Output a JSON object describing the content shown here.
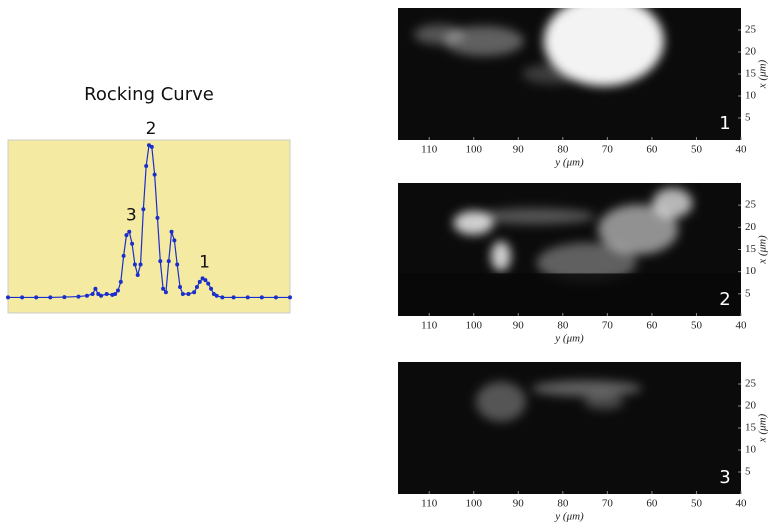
{
  "chart_data": [
    {
      "type": "line",
      "title": "Rocking Curve",
      "xlim": [
        0,
        100
      ],
      "ylim": [
        0,
        100
      ],
      "color": "#1a2ecc",
      "background": "#f5eaa2",
      "x": [
        0,
        5,
        10,
        15,
        20,
        25,
        28,
        30,
        31,
        32,
        33,
        35,
        37,
        38,
        39,
        40,
        41,
        42,
        43,
        44,
        45,
        46,
        47,
        48,
        49,
        50,
        51,
        52,
        53,
        54,
        55,
        56,
        57,
        58,
        59,
        60,
        61,
        62,
        64,
        66,
        67,
        68,
        69,
        70,
        71,
        72,
        73,
        74,
        76,
        80,
        85,
        90,
        95,
        100
      ],
      "values": [
        9,
        9,
        9,
        9,
        9.2,
        9.5,
        10,
        11,
        14,
        11,
        10,
        11,
        10.5,
        11,
        13,
        18,
        33,
        45,
        47,
        40,
        28,
        22,
        28,
        60,
        85,
        97,
        96,
        80,
        55,
        30,
        14,
        12,
        30,
        47,
        42,
        28,
        15,
        11,
        11,
        12,
        15,
        18,
        20,
        19,
        17,
        14,
        11,
        10,
        9,
        9,
        9,
        9,
        9,
        9
      ],
      "annotations": [
        {
          "text": "2",
          "x": 50,
          "y": 97
        },
        {
          "text": "3",
          "x": 43,
          "y": 47
        },
        {
          "text": "1",
          "x": 69,
          "y": 20
        }
      ]
    },
    {
      "type": "image",
      "panel": "1",
      "xlim": [
        117,
        40
      ],
      "xticks": [
        110,
        100,
        90,
        80,
        70,
        60,
        50,
        40
      ],
      "ylim": [
        0,
        30
      ],
      "yticks": [
        5,
        10,
        15,
        20,
        25
      ],
      "xlabel": "y (μm)",
      "ylabel": "x (μm)"
    },
    {
      "type": "image",
      "panel": "2",
      "xlim": [
        117,
        40
      ],
      "xticks": [
        110,
        100,
        90,
        80,
        70,
        60,
        50,
        40
      ],
      "ylim": [
        0,
        30
      ],
      "yticks": [
        5,
        10,
        15,
        20,
        25
      ],
      "xlabel": "y (μm)",
      "ylabel": "x (μm)"
    },
    {
      "type": "image",
      "panel": "3",
      "xlim": [
        117,
        40
      ],
      "xticks": [
        110,
        100,
        90,
        80,
        70,
        60,
        50,
        40
      ],
      "ylim": [
        0,
        30
      ],
      "yticks": [
        5,
        10,
        15,
        20,
        25
      ],
      "xlabel": "y (μm)",
      "ylabel": "x (μm)"
    }
  ]
}
